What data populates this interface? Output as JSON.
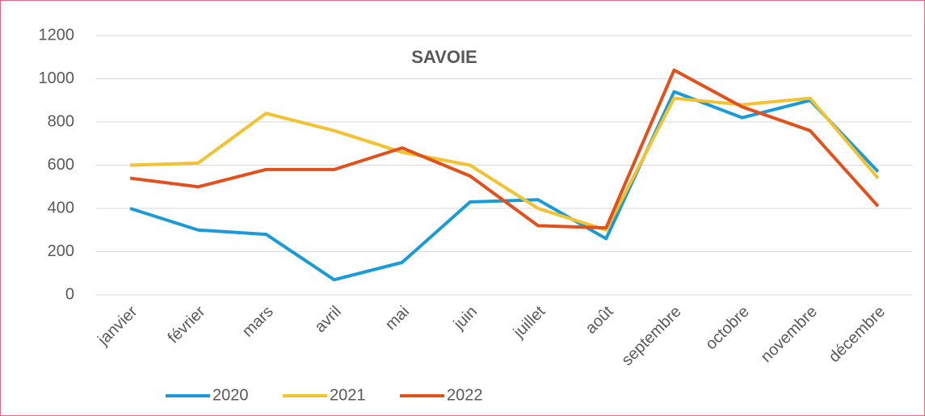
{
  "chart_data": {
    "type": "line",
    "title": "SAVOIE",
    "categories": [
      "janvier",
      "février",
      "mars",
      "avril",
      "mai",
      "juin",
      "juillet",
      "août",
      "septembre",
      "octobre",
      "novembre",
      "décembre"
    ],
    "series": [
      {
        "name": "2020",
        "color": "#1a9ad6",
        "values": [
          400,
          300,
          280,
          70,
          150,
          430,
          440,
          260,
          940,
          820,
          900,
          570
        ]
      },
      {
        "name": "2021",
        "color": "#f2c230",
        "values": [
          600,
          610,
          840,
          760,
          660,
          600,
          400,
          300,
          910,
          880,
          910,
          540
        ]
      },
      {
        "name": "2022",
        "color": "#e2501c",
        "values": [
          540,
          500,
          580,
          580,
          680,
          550,
          320,
          310,
          1040,
          870,
          760,
          410
        ]
      }
    ],
    "ylim": [
      0,
      1200
    ],
    "yticks": [
      0,
      200,
      400,
      600,
      800,
      1000,
      1200
    ],
    "grid": true,
    "legend": "bottom"
  }
}
